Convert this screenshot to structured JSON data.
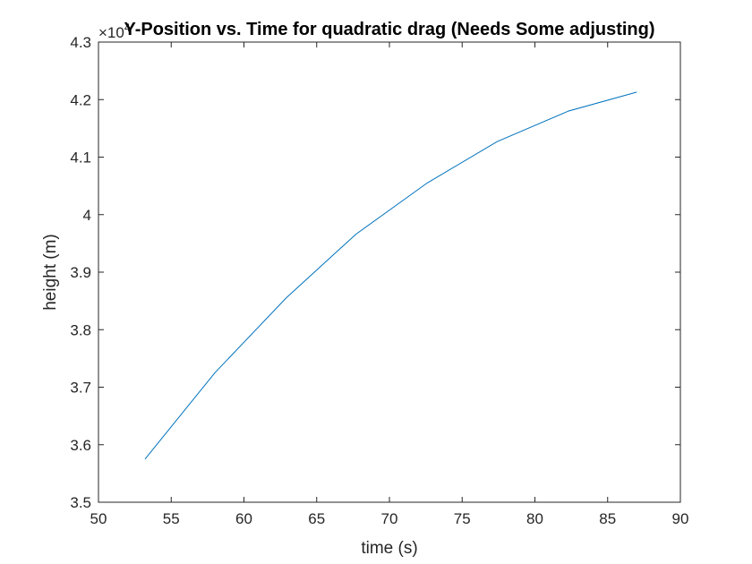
{
  "colors": {
    "background": "#ffffff",
    "axis": "#262626",
    "series": "#0072bd",
    "title": "#000000"
  },
  "chart_data": {
    "type": "line",
    "title": "Y-Position vs. Time for quadratic drag (Needs Some adjusting)",
    "xlabel": "time (s)",
    "ylabel": "height (m)",
    "xlim": [
      50,
      90
    ],
    "ylim": [
      3.5,
      4.3
    ],
    "y_exponent_base": "×10",
    "y_exponent_power": "4",
    "xticks": [
      "50",
      "55",
      "60",
      "65",
      "70",
      "75",
      "80",
      "85",
      "90"
    ],
    "yticks": [
      "3.5",
      "3.6",
      "3.7",
      "3.8",
      "3.9",
      "4",
      "4.1",
      "4.2",
      "4.3"
    ],
    "grid": false,
    "legend": "none",
    "series": [
      {
        "x": [
          53.2,
          58.0,
          62.9,
          67.7,
          72.6,
          77.4,
          82.3,
          87.0
        ],
        "y": [
          3.575,
          3.725,
          3.855,
          3.966,
          4.055,
          4.127,
          4.18,
          4.213
        ],
        "color": "#0072bd"
      }
    ]
  }
}
